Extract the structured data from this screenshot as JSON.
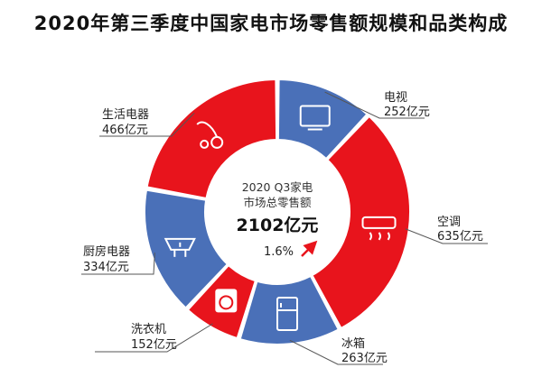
{
  "chart_data": {
    "type": "pie",
    "title": "2020年第三季度中国家电市场零售额规模和品类构成",
    "unit": "亿元",
    "categories": [
      "电视",
      "空调",
      "冰箱",
      "洗衣机",
      "厨房电器",
      "生活电器"
    ],
    "values": [
      252,
      635,
      263,
      152,
      334,
      466
    ],
    "value_labels": [
      "252亿元",
      "635亿元",
      "263亿元",
      "152亿元",
      "334亿元",
      "466亿元"
    ],
    "icons": [
      "tv-icon",
      "air-conditioner-icon",
      "refrigerator-icon",
      "washing-machine-icon",
      "range-hood-icon",
      "vacuum-cleaner-icon"
    ],
    "slice_colors": [
      "#4a70b8",
      "#e8141c",
      "#4a70b8",
      "#e8141c",
      "#4a70b8",
      "#e8141c"
    ],
    "center": {
      "line1": "2020 Q3家电",
      "line2": "市场总零售额",
      "total": "2102亿元",
      "growth": "1.6%"
    }
  }
}
